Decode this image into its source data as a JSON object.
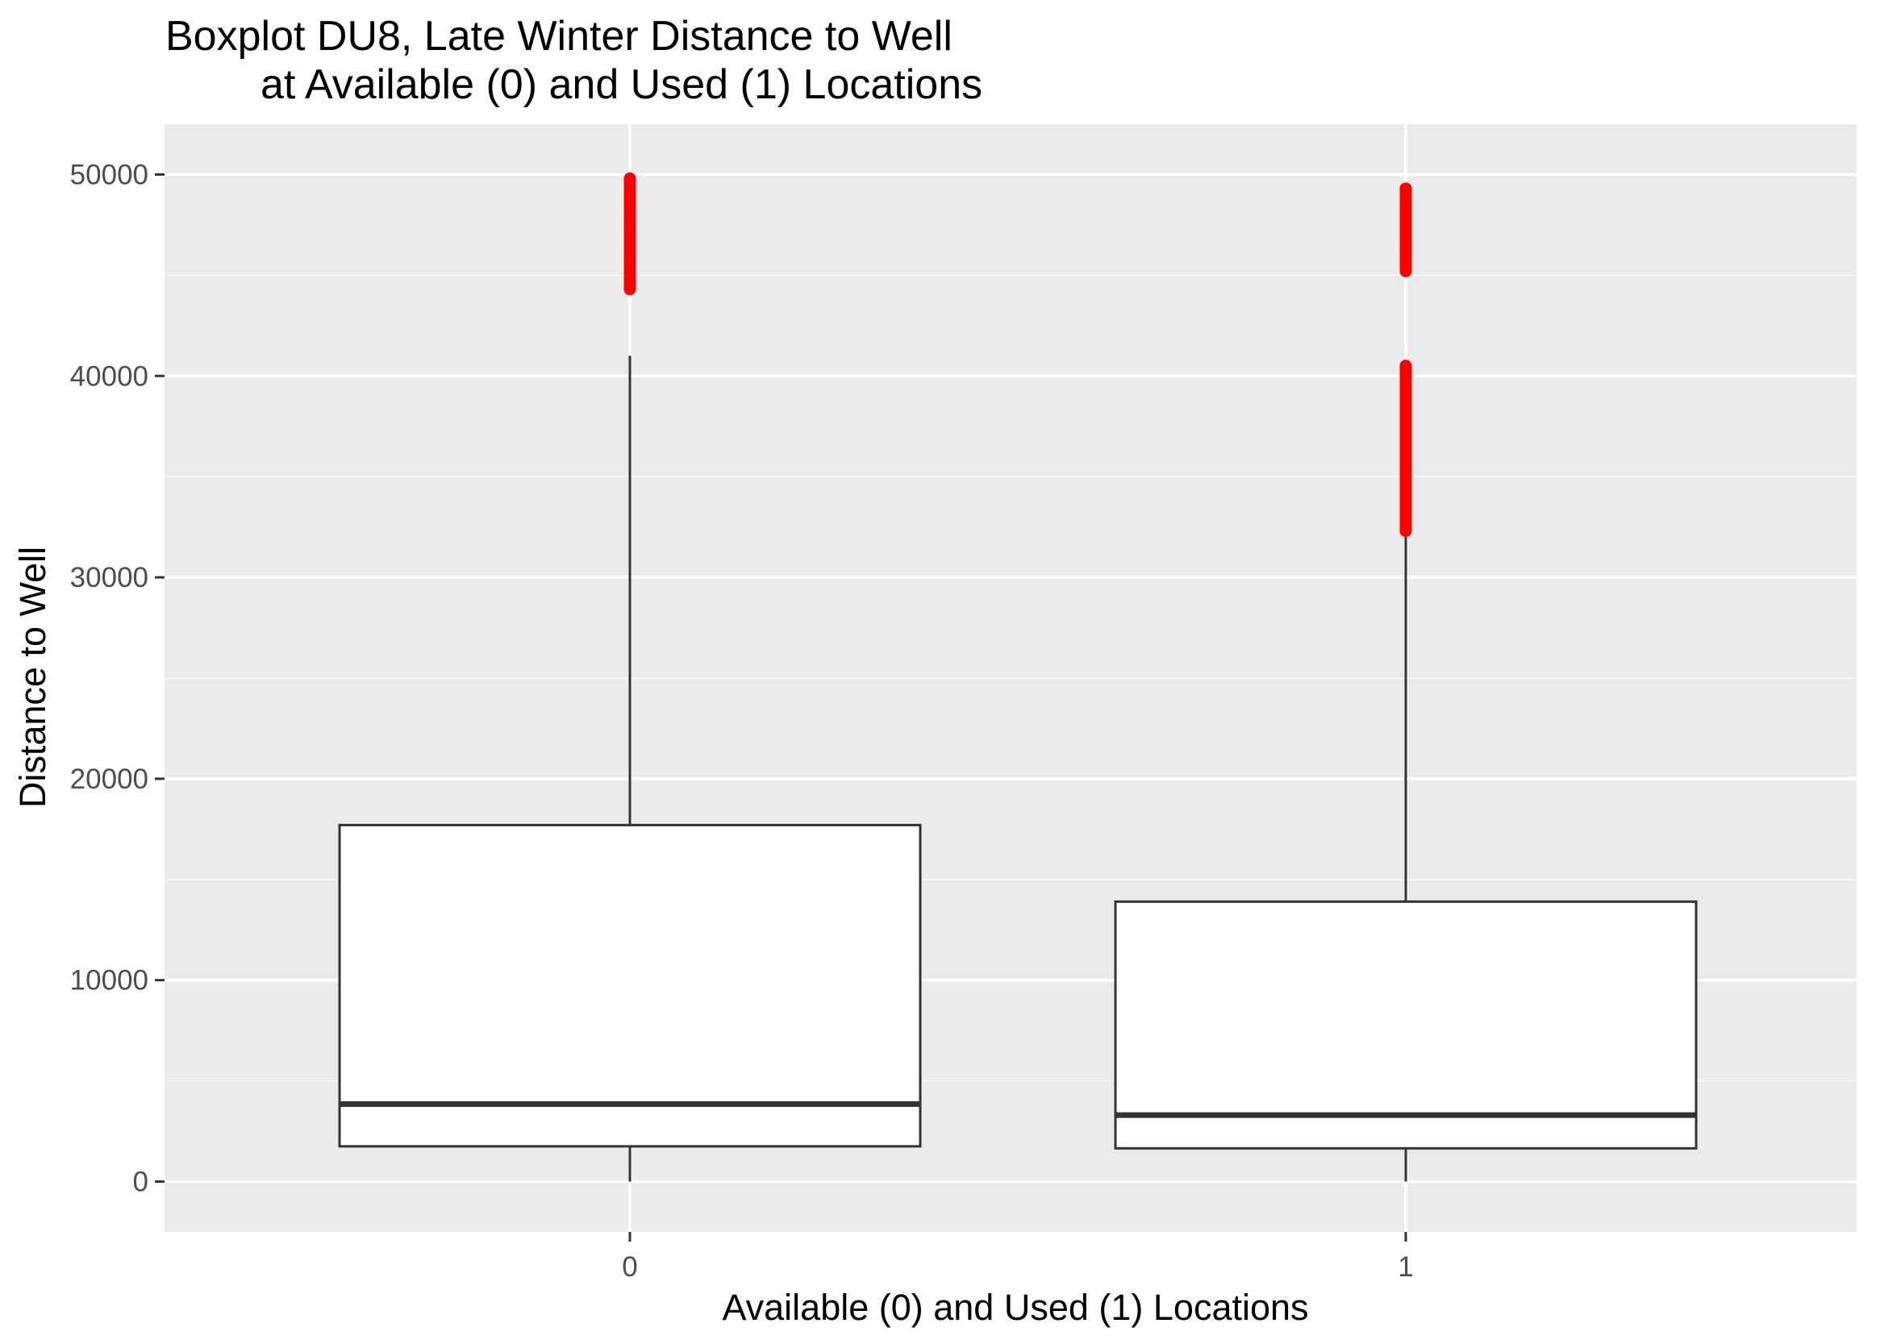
{
  "chart_data": {
    "type": "boxplot",
    "title_lines": [
      "Boxplot DU8, Late Winter Distance to Well",
      "at Available (0) and Used (1) Locations"
    ],
    "xlabel": "Available (0) and Used (1) Locations",
    "ylabel": "Distance to Well",
    "categories": [
      "0",
      "1"
    ],
    "ylim": [
      -2500,
      52500
    ],
    "yticks": [
      0,
      10000,
      20000,
      30000,
      40000,
      50000
    ],
    "ytick_labels": [
      "0",
      "10000",
      "20000",
      "30000",
      "40000",
      "50000"
    ],
    "grid": true,
    "boxes": [
      {
        "category": "0",
        "whisker_low": 0,
        "q1": 1750,
        "median": 3850,
        "q3": 17700,
        "whisker_high": 41000,
        "outlier_ranges": [
          [
            44300,
            49800
          ]
        ]
      },
      {
        "category": "1",
        "whisker_low": 0,
        "q1": 1650,
        "median": 3300,
        "q3": 13900,
        "whisker_high": 32300,
        "outlier_ranges": [
          [
            32300,
            40500
          ],
          [
            45200,
            46600
          ],
          [
            46300,
            49300
          ]
        ]
      }
    ],
    "colors": {
      "panel_background": "#ebebeb",
      "grid_major": "#ffffff",
      "grid_minor": "#f5f5f5",
      "box_fill": "#ffffff",
      "box_line": "#333333",
      "outlier": "#ff0000"
    }
  }
}
